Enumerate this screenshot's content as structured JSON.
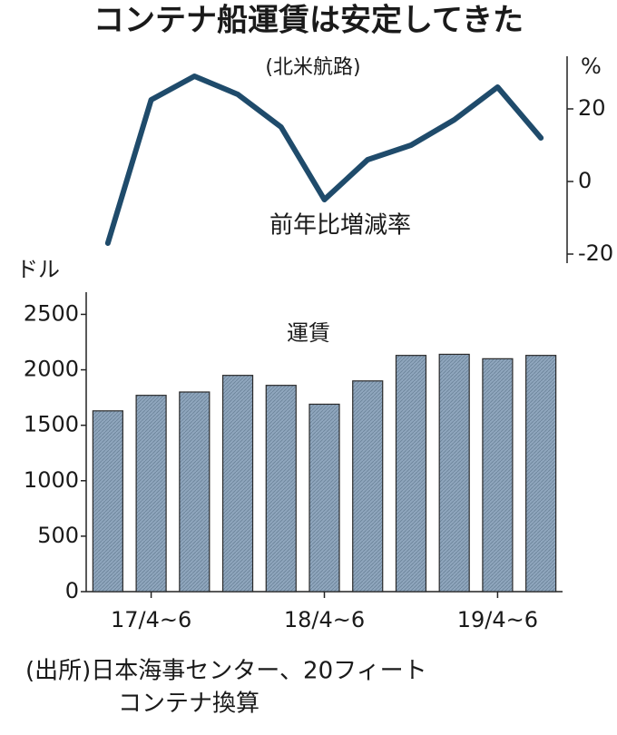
{
  "title": "コンテナ船運賃は安定してきた",
  "subtitle": "(北米航路)",
  "source": [
    "(出所)日本海事センター、20フィート",
    "コンテナ換算"
  ],
  "chart_data": [
    {
      "type": "line",
      "label": "前年比増減率",
      "unit": "%",
      "axis_side": "right",
      "color": "#1f4b6b",
      "values": [
        -17,
        22.5,
        29,
        24,
        15,
        -5,
        6,
        10,
        17,
        26,
        12
      ],
      "ylim": [
        -22.5,
        34.5
      ],
      "yticks": [
        20,
        0,
        -20
      ]
    },
    {
      "type": "bar",
      "label": "運賃",
      "unit": "ドル",
      "color": "#8fa6bd",
      "categories": [
        null,
        "17/4~6",
        null,
        null,
        null,
        "18/4~6",
        null,
        null,
        null,
        "19/4~6",
        null
      ],
      "values": [
        1630,
        1770,
        1800,
        1950,
        1860,
        1690,
        1900,
        2130,
        2140,
        2100,
        2130
      ],
      "ylim": [
        0,
        2700
      ],
      "yticks": [
        0,
        500,
        1000,
        1500,
        2000,
        2500
      ]
    }
  ]
}
